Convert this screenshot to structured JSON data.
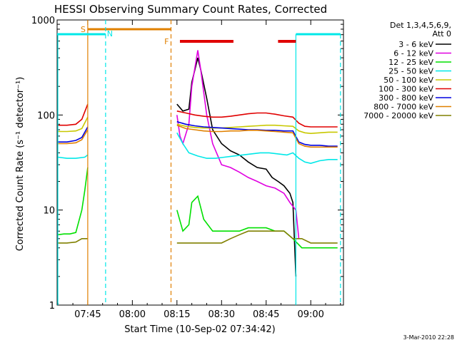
{
  "chart_data": {
    "type": "line",
    "title": "HESSI Observing Summary Count Rates, Corrected",
    "xlabel": "Start Time (10-Sep-02 07:34:42)",
    "ylabel": "Corrected Count Rate (s⁻¹ detector⁻¹)",
    "yscale": "log",
    "ylim": [
      1,
      1000
    ],
    "xlim": [
      "07:34:42",
      "09:11:00"
    ],
    "x_ticks": [
      "07:45",
      "08:00",
      "08:15",
      "08:30",
      "08:45",
      "09:00"
    ],
    "y_ticks": [
      "1",
      "10",
      "100",
      "1000"
    ],
    "legend_header": [
      "Det 1,3,4,5,6,9,",
      "Att 0"
    ],
    "legend_position": "right",
    "footer": "3-Mar-2010 22:28",
    "series": [
      {
        "name": "3 - 6 keV",
        "color": "#000000",
        "points": [
          [
            "08:15",
            130
          ],
          [
            "08:17",
            110
          ],
          [
            "08:19",
            115
          ],
          [
            "08:20",
            220
          ],
          [
            "08:22",
            400
          ],
          [
            "08:23",
            300
          ],
          [
            "08:25",
            150
          ],
          [
            "08:27",
            70
          ],
          [
            "08:30",
            50
          ],
          [
            "08:33",
            42
          ],
          [
            "08:36",
            38
          ],
          [
            "08:39",
            32
          ],
          [
            "08:42",
            28
          ],
          [
            "08:45",
            27
          ],
          [
            "08:47",
            22
          ],
          [
            "08:49",
            20
          ],
          [
            "08:51",
            18
          ],
          [
            "08:53",
            15
          ],
          [
            "08:54",
            12
          ],
          [
            "08:55",
            2
          ]
        ]
      },
      {
        "name": "6 - 12 keV",
        "color": "#e000e0",
        "points": [
          [
            "08:15",
            100
          ],
          [
            "08:16",
            60
          ],
          [
            "08:17",
            50
          ],
          [
            "08:19",
            80
          ],
          [
            "08:20",
            200
          ],
          [
            "08:22",
            480
          ],
          [
            "08:23",
            300
          ],
          [
            "08:25",
            100
          ],
          [
            "08:27",
            50
          ],
          [
            "08:30",
            30
          ],
          [
            "08:33",
            28
          ],
          [
            "08:36",
            25
          ],
          [
            "08:39",
            22
          ],
          [
            "08:42",
            20
          ],
          [
            "08:45",
            18
          ],
          [
            "08:48",
            17
          ],
          [
            "08:51",
            15
          ],
          [
            "08:53",
            12
          ],
          [
            "08:55",
            10
          ],
          [
            "08:56",
            5
          ]
        ]
      },
      {
        "name": "12 - 25 keV",
        "color": "#00e000",
        "points": [
          [
            "07:35",
            5.5
          ],
          [
            "07:37",
            5.6
          ],
          [
            "07:39",
            5.6
          ],
          [
            "07:41",
            5.8
          ],
          [
            "07:43",
            10
          ],
          [
            "07:44",
            16
          ],
          [
            "07:45",
            28
          ],
          [
            "08:15",
            10
          ],
          [
            "08:17",
            6
          ],
          [
            "08:19",
            7
          ],
          [
            "08:20",
            12
          ],
          [
            "08:22",
            14
          ],
          [
            "08:24",
            8
          ],
          [
            "08:27",
            6
          ],
          [
            "08:30",
            6
          ],
          [
            "08:33",
            6
          ],
          [
            "08:36",
            6
          ],
          [
            "08:39",
            6.5
          ],
          [
            "08:42",
            6.5
          ],
          [
            "08:45",
            6.5
          ],
          [
            "08:48",
            6
          ],
          [
            "08:51",
            6
          ],
          [
            "08:54",
            5
          ],
          [
            "08:57",
            4
          ],
          [
            "09:00",
            4
          ],
          [
            "09:03",
            4
          ],
          [
            "09:06",
            4
          ],
          [
            "09:09",
            4
          ]
        ]
      },
      {
        "name": "25 - 50 keV",
        "color": "#00e8e8",
        "points": [
          [
            "07:35",
            36
          ],
          [
            "07:38",
            35
          ],
          [
            "07:41",
            35
          ],
          [
            "07:44",
            36
          ],
          [
            "07:45",
            38
          ],
          [
            "08:15",
            65
          ],
          [
            "08:17",
            50
          ],
          [
            "08:19",
            40
          ],
          [
            "08:22",
            37
          ],
          [
            "08:25",
            35
          ],
          [
            "08:28",
            35
          ],
          [
            "08:31",
            36
          ],
          [
            "08:34",
            37
          ],
          [
            "08:37",
            38
          ],
          [
            "08:40",
            39
          ],
          [
            "08:43",
            40
          ],
          [
            "08:46",
            40
          ],
          [
            "08:49",
            39
          ],
          [
            "08:52",
            38
          ],
          [
            "08:54",
            40
          ],
          [
            "08:56",
            35
          ],
          [
            "08:58",
            32
          ],
          [
            "09:00",
            31
          ],
          [
            "09:03",
            33
          ],
          [
            "09:06",
            34
          ],
          [
            "09:09",
            34
          ]
        ]
      },
      {
        "name": "50 - 100 keV",
        "color": "#c8c800",
        "points": [
          [
            "07:35",
            67
          ],
          [
            "07:38",
            67
          ],
          [
            "07:41",
            68
          ],
          [
            "07:43",
            72
          ],
          [
            "07:45",
            95
          ],
          [
            "08:15",
            80
          ],
          [
            "08:18",
            76
          ],
          [
            "08:21",
            74
          ],
          [
            "08:24",
            73
          ],
          [
            "08:27",
            73
          ],
          [
            "08:30",
            73
          ],
          [
            "08:33",
            74
          ],
          [
            "08:36",
            75
          ],
          [
            "08:39",
            76
          ],
          [
            "08:42",
            77
          ],
          [
            "08:45",
            78
          ],
          [
            "08:48",
            78
          ],
          [
            "08:51",
            77
          ],
          [
            "08:54",
            76
          ],
          [
            "08:56",
            68
          ],
          [
            "08:58",
            65
          ],
          [
            "09:00",
            64
          ],
          [
            "09:03",
            65
          ],
          [
            "09:06",
            66
          ],
          [
            "09:09",
            66
          ]
        ]
      },
      {
        "name": "100 - 300 keV",
        "color": "#e00000",
        "points": [
          [
            "07:35",
            78
          ],
          [
            "07:38",
            78
          ],
          [
            "07:41",
            80
          ],
          [
            "07:43",
            90
          ],
          [
            "07:45",
            130
          ],
          [
            "08:15",
            110
          ],
          [
            "08:18",
            105
          ],
          [
            "08:21",
            100
          ],
          [
            "08:24",
            97
          ],
          [
            "08:27",
            95
          ],
          [
            "08:30",
            95
          ],
          [
            "08:33",
            97
          ],
          [
            "08:36",
            100
          ],
          [
            "08:39",
            103
          ],
          [
            "08:42",
            105
          ],
          [
            "08:45",
            105
          ],
          [
            "08:48",
            102
          ],
          [
            "08:51",
            98
          ],
          [
            "08:54",
            95
          ],
          [
            "08:56",
            82
          ],
          [
            "08:58",
            76
          ],
          [
            "09:00",
            75
          ],
          [
            "09:03",
            75
          ],
          [
            "09:06",
            75
          ],
          [
            "09:09",
            75
          ]
        ]
      },
      {
        "name": "300 - 800 keV",
        "color": "#0000e0",
        "points": [
          [
            "07:35",
            52
          ],
          [
            "07:38",
            52
          ],
          [
            "07:41",
            54
          ],
          [
            "07:43",
            58
          ],
          [
            "07:45",
            75
          ],
          [
            "08:15",
            85
          ],
          [
            "08:18",
            80
          ],
          [
            "08:21",
            77
          ],
          [
            "08:24",
            75
          ],
          [
            "08:27",
            74
          ],
          [
            "08:30",
            73
          ],
          [
            "08:33",
            72
          ],
          [
            "08:36",
            71
          ],
          [
            "08:39",
            70
          ],
          [
            "08:42",
            70
          ],
          [
            "08:45",
            69
          ],
          [
            "08:48",
            69
          ],
          [
            "08:51",
            68
          ],
          [
            "08:54",
            68
          ],
          [
            "08:56",
            52
          ],
          [
            "08:58",
            49
          ],
          [
            "09:00",
            48
          ],
          [
            "09:03",
            48
          ],
          [
            "09:06",
            47
          ],
          [
            "09:09",
            47
          ]
        ]
      },
      {
        "name": "800 - 7000 keV",
        "color": "#e08000",
        "points": [
          [
            "07:35",
            50
          ],
          [
            "07:38",
            50
          ],
          [
            "07:41",
            51
          ],
          [
            "07:43",
            55
          ],
          [
            "07:45",
            70
          ],
          [
            "08:15",
            78
          ],
          [
            "08:18",
            72
          ],
          [
            "08:21",
            70
          ],
          [
            "08:24",
            68
          ],
          [
            "08:27",
            67
          ],
          [
            "08:30",
            67
          ],
          [
            "08:33",
            68
          ],
          [
            "08:36",
            68
          ],
          [
            "08:39",
            69
          ],
          [
            "08:42",
            69
          ],
          [
            "08:45",
            68
          ],
          [
            "08:48",
            67
          ],
          [
            "08:51",
            66
          ],
          [
            "08:54",
            65
          ],
          [
            "08:56",
            50
          ],
          [
            "08:58",
            47
          ],
          [
            "09:00",
            46
          ],
          [
            "09:03",
            46
          ],
          [
            "09:06",
            46
          ],
          [
            "09:09",
            46
          ]
        ]
      },
      {
        "name": "7000 - 20000 keV",
        "color": "#808000",
        "points": [
          [
            "07:35",
            4.5
          ],
          [
            "07:38",
            4.5
          ],
          [
            "07:41",
            4.6
          ],
          [
            "07:43",
            5
          ],
          [
            "07:45",
            5
          ],
          [
            "08:15",
            4.5
          ],
          [
            "08:18",
            4.5
          ],
          [
            "08:21",
            4.5
          ],
          [
            "08:24",
            4.5
          ],
          [
            "08:27",
            4.5
          ],
          [
            "08:30",
            4.5
          ],
          [
            "08:33",
            5
          ],
          [
            "08:36",
            5.5
          ],
          [
            "08:39",
            6
          ],
          [
            "08:42",
            6
          ],
          [
            "08:45",
            6
          ],
          [
            "08:48",
            6
          ],
          [
            "08:51",
            6
          ],
          [
            "08:54",
            5
          ],
          [
            "08:57",
            5
          ],
          [
            "09:00",
            4.5
          ],
          [
            "09:03",
            4.5
          ],
          [
            "09:06",
            4.5
          ],
          [
            "09:09",
            4.5
          ]
        ]
      }
    ],
    "annotations": {
      "saa": {
        "label": "S",
        "start": "07:45",
        "end": "08:13",
        "color": "#e08000"
      },
      "saa_end_label": "F",
      "night": {
        "label": "N",
        "start": "07:51",
        "color": "#00e8e8"
      },
      "night_bars": [
        [
          "07:34:42",
          "07:51"
        ],
        [
          "08:55",
          "09:10"
        ]
      ],
      "flare_bars": [
        [
          "08:16",
          "08:34"
        ],
        [
          "08:49",
          "08:55"
        ]
      ],
      "flare_color": "#e00000"
    }
  }
}
